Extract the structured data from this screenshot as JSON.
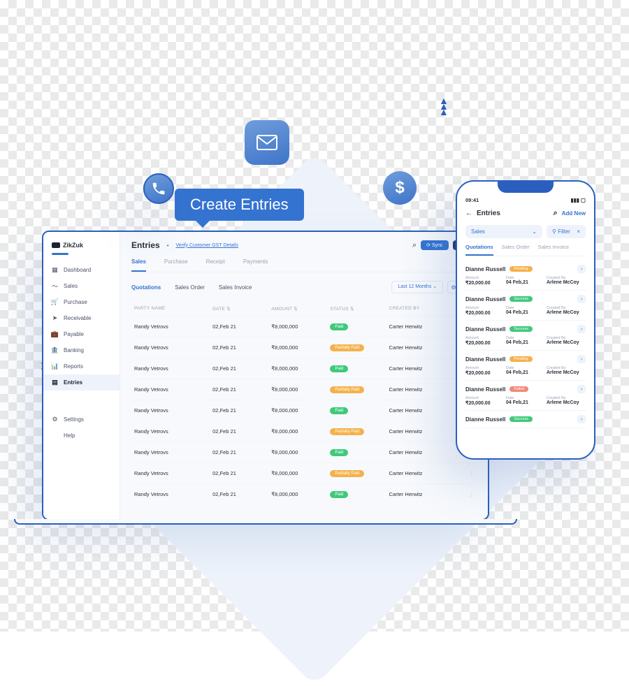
{
  "tooltip": "Create Entries",
  "colors": {
    "primary": "#3573d0",
    "border": "#2a5fc0",
    "badge_paid": "#3fc97b",
    "badge_partial": "#f5b14a",
    "badge_pending": "#f5b14a",
    "badge_success": "#3fc97b",
    "badge_failed": "#f08a7a"
  },
  "desktop": {
    "brand": "ZikZuk",
    "nav": [
      {
        "icon": "▦",
        "label": "Dashboard"
      },
      {
        "icon": "〜",
        "label": "Sales"
      },
      {
        "icon": "🛒",
        "label": "Purchase"
      },
      {
        "icon": "➤",
        "label": "Receivable"
      },
      {
        "icon": "💼",
        "label": "Payable"
      },
      {
        "icon": "🏦",
        "label": "Banking"
      },
      {
        "icon": "📊",
        "label": "Reports"
      },
      {
        "icon": "▤",
        "label": "Entries"
      }
    ],
    "nav_bottom": [
      {
        "icon": "⚙",
        "label": "Settings"
      },
      {
        "icon": "",
        "label": "Help"
      }
    ],
    "title": "Entries",
    "verify": "Verify Customer GST Details",
    "sync": "⟳ Sync",
    "user_count": "👤 10",
    "tabs": [
      "Sales",
      "Purchase",
      "Receipt",
      "Payments"
    ],
    "subtabs": [
      "Quotations",
      "Sales Order",
      "Sales Invoice"
    ],
    "period": "Last 12 Months ⌄",
    "columns": [
      "PARTY NAME",
      "DATE ⇅",
      "AMOUNT ⇅",
      "STATUS ⇅",
      "CREATED BY",
      ""
    ],
    "rows": [
      {
        "party": "Randy Vetrovs",
        "date": "02,Feb 21",
        "amount": "₹8,000,000",
        "status": "Paid",
        "status_color": "#3fc97b",
        "by": "Carter Herwitz"
      },
      {
        "party": "Randy Vetrovs",
        "date": "02,Feb 21",
        "amount": "₹8,000,000",
        "status": "Partially Paid",
        "status_color": "#f5b14a",
        "by": "Carter Herwitz"
      },
      {
        "party": "Randy Vetrovs",
        "date": "02,Feb 21",
        "amount": "₹8,000,000",
        "status": "Paid",
        "status_color": "#3fc97b",
        "by": "Carter Herwitz"
      },
      {
        "party": "Randy Vetrovs",
        "date": "02,Feb 21",
        "amount": "₹8,000,000",
        "status": "Partially Paid",
        "status_color": "#f5b14a",
        "by": "Carter Herwitz"
      },
      {
        "party": "Randy Vetrovs",
        "date": "02,Feb 21",
        "amount": "₹8,000,000",
        "status": "Paid",
        "status_color": "#3fc97b",
        "by": "Carter Herwitz"
      },
      {
        "party": "Randy Vetrovs",
        "date": "02,Feb 21",
        "amount": "₹8,000,000",
        "status": "Partially Paid",
        "status_color": "#f5b14a",
        "by": "Carter Herwitz"
      },
      {
        "party": "Randy Vetrovs",
        "date": "02,Feb 21",
        "amount": "₹8,000,000",
        "status": "Paid",
        "status_color": "#3fc97b",
        "by": "Carter Herwitz"
      },
      {
        "party": "Randy Vetrovs",
        "date": "02,Feb 21",
        "amount": "₹8,000,000",
        "status": "Partially Paid",
        "status_color": "#f5b14a",
        "by": "Carter Herwitz"
      },
      {
        "party": "Randy Vetrovs",
        "date": "02,Feb 21",
        "amount": "₹8,000,000",
        "status": "Paid",
        "status_color": "#3fc97b",
        "by": "Carter Herwitz"
      }
    ]
  },
  "mobile": {
    "time": "09:41",
    "signal": "▮▮▮ ▢",
    "title": "Entries",
    "addnew": "Add New",
    "chip_category": "Sales",
    "chip_filter": "⚲ Filter",
    "tabs": [
      "Quotations",
      "Sales Order",
      "Sales Invoice"
    ],
    "labels": {
      "amount": "Amount",
      "date": "Date",
      "by": "Created By"
    },
    "cards": [
      {
        "name": "Dianne Russell",
        "status": "Pending",
        "status_color": "#f5b14a",
        "amount": "₹20,000.00",
        "date": "04 Feb,21",
        "by": "Arlene McCoy"
      },
      {
        "name": "Dianne Russell",
        "status": "Success",
        "status_color": "#3fc97b",
        "amount": "₹20,000.00",
        "date": "04 Feb,21",
        "by": "Arlene McCoy"
      },
      {
        "name": "Dianne Russell",
        "status": "Success",
        "status_color": "#3fc97b",
        "amount": "₹20,000.00",
        "date": "04 Feb,21",
        "by": "Arlene McCoy"
      },
      {
        "name": "Dianne Russell",
        "status": "Pending",
        "status_color": "#f5b14a",
        "amount": "₹20,000.00",
        "date": "04 Feb,21",
        "by": "Arlene McCoy"
      },
      {
        "name": "Dianne Russell",
        "status": "Failed",
        "status_color": "#f08a7a",
        "amount": "₹20,000.00",
        "date": "04 Feb,21",
        "by": "Arlene McCoy"
      },
      {
        "name": "Dianne Russell",
        "status": "Success",
        "status_color": "#3fc97b",
        "amount": "",
        "date": "",
        "by": ""
      }
    ]
  }
}
